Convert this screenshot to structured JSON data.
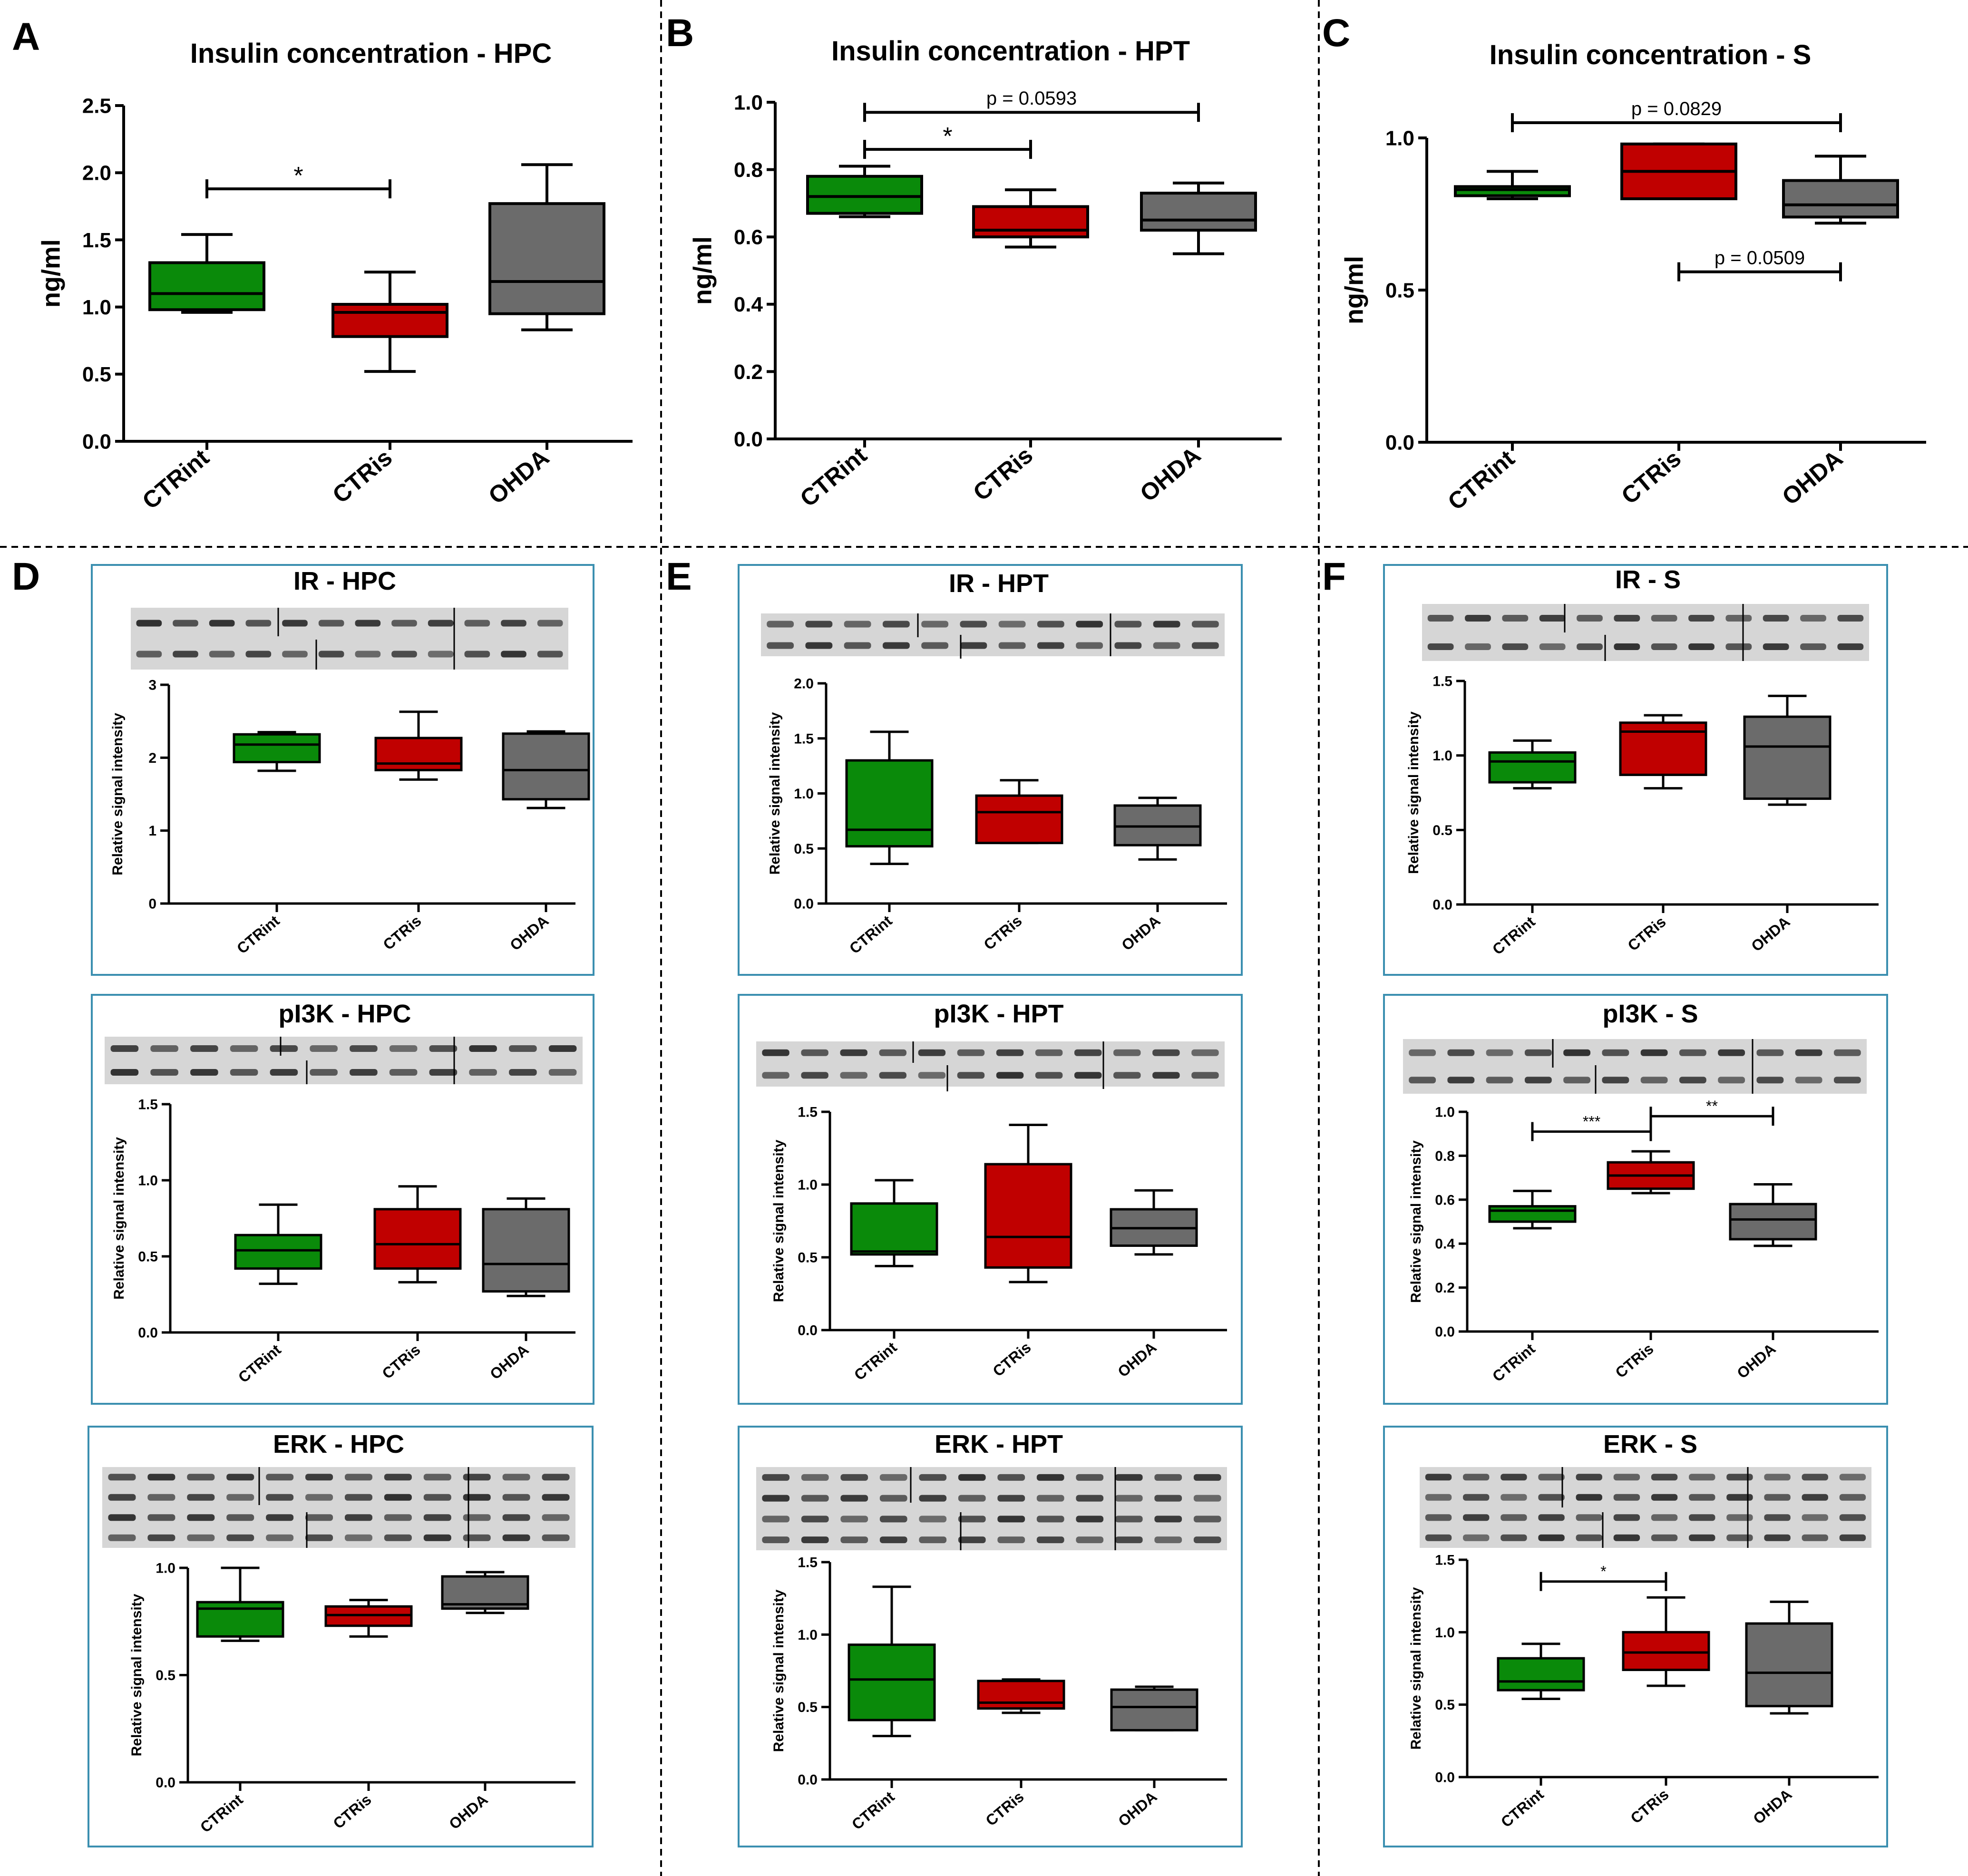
{
  "colors": {
    "green": "#0a8a0a",
    "red": "#c00000",
    "gray": "#6b6b6b",
    "frame": "#3b8fb0",
    "axis": "#000000"
  },
  "panel_letters": [
    "A",
    "B",
    "C",
    "D",
    "E",
    "F"
  ],
  "chart_data": [
    {
      "id": "A",
      "type": "box",
      "title": "Insulin concentration - HPC",
      "ylabel": "ng/ml",
      "ylim": [
        0,
        2.5
      ],
      "yticks": [
        "0.0",
        "0.5",
        "1.0",
        "1.5",
        "2.0",
        "2.5"
      ],
      "categories": [
        "CTRint",
        "CTRis",
        "OHDA"
      ],
      "boxes": [
        [
          0.96,
          0.98,
          1.1,
          1.33,
          1.54
        ],
        [
          0.52,
          0.78,
          0.96,
          1.02,
          1.26
        ],
        [
          0.83,
          0.95,
          1.19,
          1.77,
          2.06
        ]
      ],
      "annotations": [
        {
          "text": "*",
          "from": 0,
          "to": 1,
          "y": 1.88
        }
      ]
    },
    {
      "id": "B",
      "type": "box",
      "title": "Insulin concentration - HPT",
      "ylabel": "ng/ml",
      "ylim": [
        0,
        1.0
      ],
      "yticks": [
        "0.0",
        "0.2",
        "0.4",
        "0.6",
        "0.8",
        "1.0"
      ],
      "categories": [
        "CTRint",
        "CTRis",
        "OHDA"
      ],
      "boxes": [
        [
          0.66,
          0.67,
          0.72,
          0.78,
          0.81
        ],
        [
          0.57,
          0.6,
          0.62,
          0.69,
          0.74
        ],
        [
          0.55,
          0.62,
          0.65,
          0.73,
          0.76
        ]
      ],
      "annotations": [
        {
          "text": "*",
          "from": 0,
          "to": 1,
          "y": 0.86
        },
        {
          "text": "p = 0.0593",
          "from": 0,
          "to": 2,
          "y": 0.97
        }
      ]
    },
    {
      "id": "C",
      "type": "box",
      "title": "Insulin concentration - S",
      "ylabel": "ng/ml",
      "ylim": [
        0,
        1.0
      ],
      "yticks": [
        "0.0",
        "0.5",
        "1.0"
      ],
      "categories": [
        "CTRint",
        "CTRis",
        "OHDA"
      ],
      "boxes": [
        [
          0.8,
          0.81,
          0.83,
          0.84,
          0.89
        ],
        [
          0.8,
          0.8,
          0.89,
          0.98,
          0.98
        ],
        [
          0.72,
          0.74,
          0.78,
          0.86,
          0.94
        ]
      ],
      "annotations": [
        {
          "text": "p = 0.0829",
          "from": 0,
          "to": 2,
          "y": 1.05
        },
        {
          "text": "p = 0.0509",
          "from": 1,
          "to": 2,
          "y": 0.56
        }
      ]
    },
    {
      "id": "D1",
      "type": "box",
      "title": "IR - HPC",
      "ylabel": "Relative signal intensity",
      "ylim": [
        0,
        3
      ],
      "yticks": [
        "0",
        "1",
        "2",
        "3"
      ],
      "categories": [
        "CTRint",
        "CTRis",
        "OHDA"
      ],
      "boxes": [
        [
          1.82,
          1.94,
          2.18,
          2.32,
          2.35
        ],
        [
          1.7,
          1.83,
          1.92,
          2.27,
          2.63
        ],
        [
          1.31,
          1.43,
          1.83,
          2.33,
          2.36
        ]
      ],
      "annotations": []
    },
    {
      "id": "D2",
      "type": "box",
      "title": "pI3K - HPC",
      "ylabel": "Relative signal intensity",
      "ylim": [
        0,
        1.5
      ],
      "yticks": [
        "0.0",
        "0.5",
        "1.0",
        "1.5"
      ],
      "categories": [
        "CTRint",
        "CTRis",
        "OHDA"
      ],
      "boxes": [
        [
          0.32,
          0.42,
          0.54,
          0.64,
          0.84
        ],
        [
          0.33,
          0.42,
          0.58,
          0.81,
          0.96
        ],
        [
          0.24,
          0.27,
          0.45,
          0.81,
          0.88
        ]
      ],
      "annotations": []
    },
    {
      "id": "D3",
      "type": "box",
      "title": "ERK - HPC",
      "ylabel": "Relative signal intensity",
      "ylim": [
        0,
        1.0
      ],
      "yticks": [
        "0.0",
        "0.5",
        "1.0"
      ],
      "categories": [
        "CTRint",
        "CTRis",
        "OHDA"
      ],
      "boxes": [
        [
          0.66,
          0.68,
          0.81,
          0.84,
          1.0
        ],
        [
          0.68,
          0.73,
          0.78,
          0.82,
          0.85
        ],
        [
          0.79,
          0.81,
          0.83,
          0.96,
          0.98
        ]
      ],
      "annotations": []
    },
    {
      "id": "E1",
      "type": "box",
      "title": "IR - HPT",
      "ylabel": "Relative signal intensity",
      "ylim": [
        0,
        2.0
      ],
      "yticks": [
        "0.0",
        "0.5",
        "1.0",
        "1.5",
        "2.0"
      ],
      "categories": [
        "CTRint",
        "CTRis",
        "OHDA"
      ],
      "boxes": [
        [
          0.36,
          0.52,
          0.67,
          1.3,
          1.56
        ],
        [
          0.55,
          0.55,
          0.83,
          0.98,
          1.12
        ],
        [
          0.4,
          0.53,
          0.7,
          0.89,
          0.96
        ]
      ],
      "annotations": []
    },
    {
      "id": "E2",
      "type": "box",
      "title": "pI3K - HPT",
      "ylabel": "Relative signal intensity",
      "ylim": [
        0,
        1.5
      ],
      "yticks": [
        "0.0",
        "0.5",
        "1.0",
        "1.5"
      ],
      "categories": [
        "CTRint",
        "CTRis",
        "OHDA"
      ],
      "boxes": [
        [
          0.44,
          0.52,
          0.54,
          0.87,
          1.03
        ],
        [
          0.33,
          0.43,
          0.64,
          1.14,
          1.41
        ],
        [
          0.52,
          0.58,
          0.7,
          0.83,
          0.96
        ]
      ],
      "annotations": []
    },
    {
      "id": "E3",
      "type": "box",
      "title": "ERK - HPT",
      "ylabel": "Relative signal intensity",
      "ylim": [
        0,
        1.5
      ],
      "yticks": [
        "0.0",
        "0.5",
        "1.0",
        "1.5"
      ],
      "categories": [
        "CTRint",
        "CTRis",
        "OHDA"
      ],
      "boxes": [
        [
          0.3,
          0.41,
          0.69,
          0.93,
          1.33
        ],
        [
          0.46,
          0.49,
          0.53,
          0.68,
          0.69
        ],
        [
          0.34,
          0.34,
          0.5,
          0.62,
          0.64
        ]
      ],
      "annotations": []
    },
    {
      "id": "F1",
      "type": "box",
      "title": "IR - S",
      "ylabel": "Relative signal intensity",
      "ylim": [
        0,
        1.5
      ],
      "yticks": [
        "0.0",
        "0.5",
        "1.0",
        "1.5"
      ],
      "categories": [
        "CTRint",
        "CTRis",
        "OHDA"
      ],
      "boxes": [
        [
          0.78,
          0.82,
          0.96,
          1.02,
          1.1
        ],
        [
          0.78,
          0.87,
          1.16,
          1.22,
          1.27
        ],
        [
          0.67,
          0.71,
          1.06,
          1.26,
          1.4
        ]
      ],
      "annotations": []
    },
    {
      "id": "F2",
      "type": "box",
      "title": "pI3K - S",
      "ylabel": "Relative signal intensity",
      "ylim": [
        0,
        1.0
      ],
      "yticks": [
        "0.0",
        "0.2",
        "0.4",
        "0.6",
        "0.8",
        "1.0"
      ],
      "categories": [
        "CTRint",
        "CTRis",
        "OHDA"
      ],
      "boxes": [
        [
          0.47,
          0.5,
          0.55,
          0.57,
          0.64
        ],
        [
          0.63,
          0.65,
          0.71,
          0.77,
          0.82
        ],
        [
          0.39,
          0.42,
          0.51,
          0.58,
          0.67
        ]
      ],
      "annotations": [
        {
          "text": "***",
          "from": 0,
          "to": 1,
          "y": 0.91
        },
        {
          "text": "**",
          "from": 1,
          "to": 2,
          "y": 0.98
        }
      ]
    },
    {
      "id": "F3",
      "type": "box",
      "title": "ERK - S",
      "ylabel": "Relative signal intensity",
      "ylim": [
        0,
        1.5
      ],
      "yticks": [
        "0.0",
        "0.5",
        "1.0",
        "1.5"
      ],
      "categories": [
        "CTRint",
        "CTRis",
        "OHDA"
      ],
      "boxes": [
        [
          0.54,
          0.6,
          0.66,
          0.82,
          0.92
        ],
        [
          0.63,
          0.74,
          0.86,
          1.0,
          1.24
        ],
        [
          0.44,
          0.49,
          0.72,
          1.06,
          1.21
        ]
      ],
      "annotations": [
        {
          "text": "*",
          "from": 0,
          "to": 1,
          "y": 1.35
        }
      ]
    }
  ]
}
